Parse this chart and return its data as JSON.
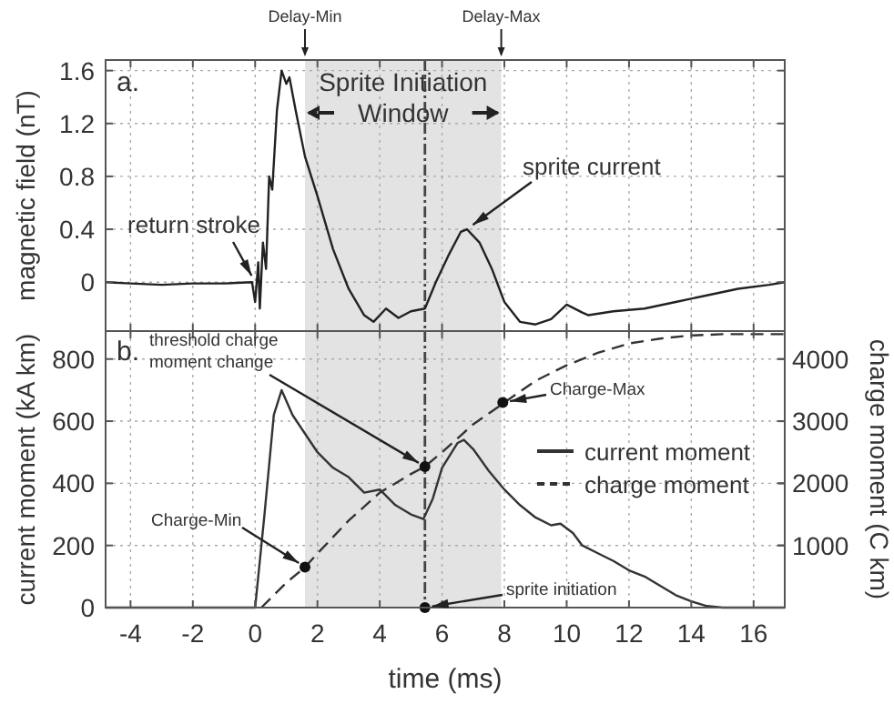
{
  "chart_data": [
    {
      "type": "line",
      "ylabel": "magnetic field (nT)",
      "xlim": [
        -4.8,
        17
      ],
      "xticks": [
        -4,
        -2,
        0,
        2,
        4,
        6,
        8,
        10,
        12,
        14,
        16
      ],
      "ylim": [
        -0.37,
        1.68
      ],
      "yticks": [
        0,
        0.4,
        0.8,
        1.2,
        1.6
      ],
      "grid": true,
      "tick_labels": "y",
      "legend": false,
      "series": [
        {
          "color": "#222222",
          "x": [
            -4.8,
            -4,
            -3,
            -2,
            -1,
            -0.1,
            0,
            0.1,
            0.15,
            0.25,
            0.35,
            0.45,
            0.55,
            0.7,
            0.85,
            1.0,
            1.1,
            1.3,
            1.6,
            2.0,
            2.5,
            3.0,
            3.5,
            3.8,
            4.2,
            4.6,
            5.0,
            5.45,
            5.8,
            6.2,
            6.6,
            6.8,
            7.2,
            7.6,
            8.0,
            8.5,
            9.0,
            9.5,
            10.0,
            10.5,
            10.7,
            11.5,
            12.5,
            13.5,
            14.5,
            15.5,
            16.5,
            17
          ],
          "values": [
            0,
            -0.01,
            -0.02,
            -0.01,
            -0.01,
            0,
            -0.15,
            0.15,
            -0.2,
            0.3,
            0.1,
            0.8,
            0.7,
            1.3,
            1.6,
            1.5,
            1.55,
            1.3,
            0.95,
            0.65,
            0.25,
            -0.05,
            -0.25,
            -0.3,
            -0.2,
            -0.27,
            -0.22,
            -0.2,
            0,
            0.2,
            0.38,
            0.4,
            0.3,
            0.1,
            -0.15,
            -0.3,
            -0.32,
            -0.28,
            -0.17,
            -0.23,
            -0.25,
            -0.22,
            -0.2,
            -0.15,
            -0.1,
            -0.05,
            -0.02,
            0
          ]
        }
      ],
      "bands": [
        {
          "axis": "x",
          "from": 1.6,
          "to": 7.9,
          "label": "Sprite Initiation Window",
          "color": "#e3e3e3"
        }
      ],
      "ref_lines": [
        {
          "axis": "x",
          "value": 5.45
        }
      ],
      "annotations": [
        "a.",
        {
          "text": "Delay-Min",
          "x": 1.6
        },
        {
          "text": "Delay-Max",
          "x": 7.9
        },
        {
          "text": "return stroke",
          "x": 0,
          "y": 0
        },
        {
          "text": "sprite current",
          "x": 6.8,
          "y": 0.4
        }
      ]
    },
    {
      "type": "line",
      "xlabel": "time (ms)",
      "ylabel": "current moment (kA km)",
      "y2label": "charge moment (C km)",
      "xlim": [
        -4.8,
        17
      ],
      "xticks": [
        -4,
        -2,
        0,
        2,
        4,
        6,
        8,
        10,
        12,
        14,
        16
      ],
      "ylim": [
        0,
        890
      ],
      "yticks": [
        0,
        200,
        400,
        600,
        800
      ],
      "y2lim": [
        0,
        4450
      ],
      "y2ticks": [
        1000,
        2000,
        3000,
        4000
      ],
      "grid": true,
      "legend": "right",
      "series": [
        {
          "name": "current moment",
          "color": "#333333",
          "line_style": "solid",
          "x": [
            -4.8,
            0,
            0.3,
            0.6,
            0.85,
            1.2,
            1.6,
            2,
            2.5,
            3,
            3.5,
            4,
            4.5,
            5,
            5.4,
            5.7,
            6,
            6.5,
            6.7,
            7,
            7.5,
            8,
            8.5,
            9,
            9.5,
            9.8,
            10.2,
            10.5,
            11,
            11.5,
            12,
            12.5,
            13,
            13.5,
            14,
            14.5,
            15,
            17
          ],
          "values": [
            0,
            0,
            300,
            620,
            700,
            620,
            560,
            500,
            450,
            420,
            370,
            380,
            330,
            300,
            285,
            350,
            450,
            530,
            540,
            510,
            440,
            380,
            330,
            290,
            265,
            270,
            240,
            200,
            175,
            150,
            120,
            100,
            70,
            40,
            20,
            5,
            0,
            0
          ]
        },
        {
          "name": "charge moment",
          "color": "#333333",
          "line_style": "dashed",
          "axis": "y2",
          "x": [
            0.2,
            0.5,
            1,
            1.6,
            2,
            3,
            4,
            5,
            5.45,
            6,
            7,
            8,
            9,
            10,
            11,
            12,
            13,
            14,
            15,
            17
          ],
          "values": [
            0,
            150,
            400,
            650,
            870,
            1400,
            1850,
            2150,
            2270,
            2500,
            2950,
            3300,
            3650,
            3900,
            4100,
            4250,
            4330,
            4380,
            4400,
            4400
          ]
        },
        {
          "type": "scatter",
          "axis": "y2",
          "color": "#111111",
          "marker": "circle",
          "x": [
            1.6,
            5.45,
            7.95,
            5.45
          ],
          "values": [
            650,
            2270,
            3300,
            0
          ]
        }
      ],
      "bands": [
        {
          "axis": "x",
          "from": 1.6,
          "to": 7.9,
          "color": "#e3e3e3"
        }
      ],
      "ref_lines": [
        {
          "axis": "x",
          "value": 5.45
        }
      ],
      "annotations": [
        "b.",
        {
          "text": "threshold charge moment change",
          "x": 5.45,
          "y": 454
        },
        {
          "text": "Charge-Min",
          "x": 1.6,
          "y": 131
        },
        {
          "text": "Charge-Max",
          "x": 7.95,
          "y": 660
        },
        {
          "text": "sprite initiation",
          "x": 5.45,
          "y": 0
        }
      ]
    }
  ]
}
